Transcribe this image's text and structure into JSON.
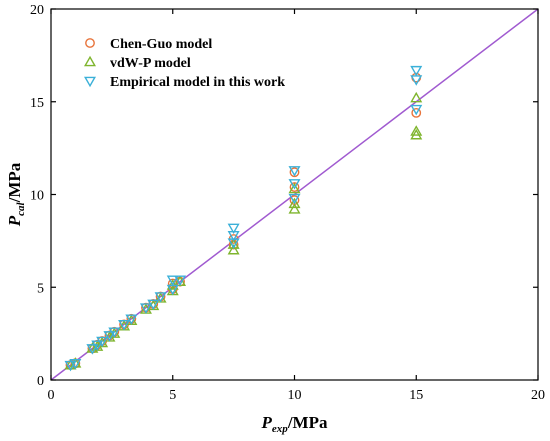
{
  "chart_data": {
    "type": "scatter",
    "xlabel": {
      "main": "P",
      "sub": "exp",
      "unit": "/MPa"
    },
    "ylabel": {
      "main": "P",
      "sub": "cal",
      "unit": "/MPa"
    },
    "xlim": [
      0,
      20
    ],
    "ylim": [
      0,
      20
    ],
    "xticks": [
      0,
      5,
      10,
      15,
      20
    ],
    "yticks": [
      0,
      5,
      10,
      15,
      20
    ],
    "grid": false,
    "legend_position": "top-left",
    "reference_line": {
      "from": [
        0,
        0
      ],
      "to": [
        20,
        20
      ],
      "color": "#a05ad0"
    },
    "series": [
      {
        "name": "Chen-Guo model",
        "marker": "circle",
        "color": "#e8733a",
        "x": [
          0.8,
          1.0,
          1.7,
          1.9,
          2.1,
          2.4,
          2.6,
          3.0,
          3.3,
          3.9,
          4.2,
          4.5,
          5.0,
          5.0,
          5.3,
          7.5,
          7.5,
          10.0,
          10.0,
          10.0,
          15.0,
          15.0
        ],
        "y": [
          0.8,
          0.9,
          1.7,
          1.9,
          2.1,
          2.4,
          2.6,
          3.0,
          3.3,
          3.9,
          4.1,
          4.5,
          4.9,
          5.2,
          5.3,
          7.3,
          7.6,
          9.7,
          10.4,
          11.2,
          14.4,
          16.3
        ]
      },
      {
        "name": "vdW-P model",
        "marker": "triangle-up",
        "color": "#7fb52e",
        "x": [
          0.8,
          1.0,
          1.7,
          1.9,
          2.1,
          2.4,
          2.6,
          3.0,
          3.3,
          3.9,
          4.2,
          4.5,
          5.0,
          5.0,
          5.3,
          7.5,
          7.5,
          10.0,
          10.0,
          10.0,
          15.0,
          15.0,
          15.0
        ],
        "y": [
          0.8,
          0.9,
          1.7,
          1.8,
          2.0,
          2.3,
          2.5,
          2.9,
          3.2,
          3.8,
          4.0,
          4.4,
          4.8,
          5.1,
          5.3,
          7.0,
          7.3,
          9.2,
          9.5,
          10.3,
          13.2,
          13.4,
          15.2
        ]
      },
      {
        "name": "Empirical model in this work",
        "marker": "triangle-down",
        "color": "#3bb0d8",
        "x": [
          0.8,
          1.0,
          1.7,
          1.9,
          2.1,
          2.4,
          2.6,
          3.0,
          3.3,
          3.9,
          4.2,
          4.5,
          5.0,
          5.0,
          5.3,
          7.5,
          7.5,
          7.5,
          10.0,
          10.0,
          10.0,
          15.0,
          15.0,
          15.0
        ],
        "y": [
          0.8,
          0.9,
          1.7,
          1.9,
          2.1,
          2.4,
          2.6,
          3.0,
          3.3,
          3.9,
          4.1,
          4.5,
          4.9,
          5.4,
          5.4,
          7.4,
          7.8,
          8.2,
          9.8,
          10.6,
          11.3,
          14.6,
          16.2,
          16.7
        ]
      }
    ]
  }
}
